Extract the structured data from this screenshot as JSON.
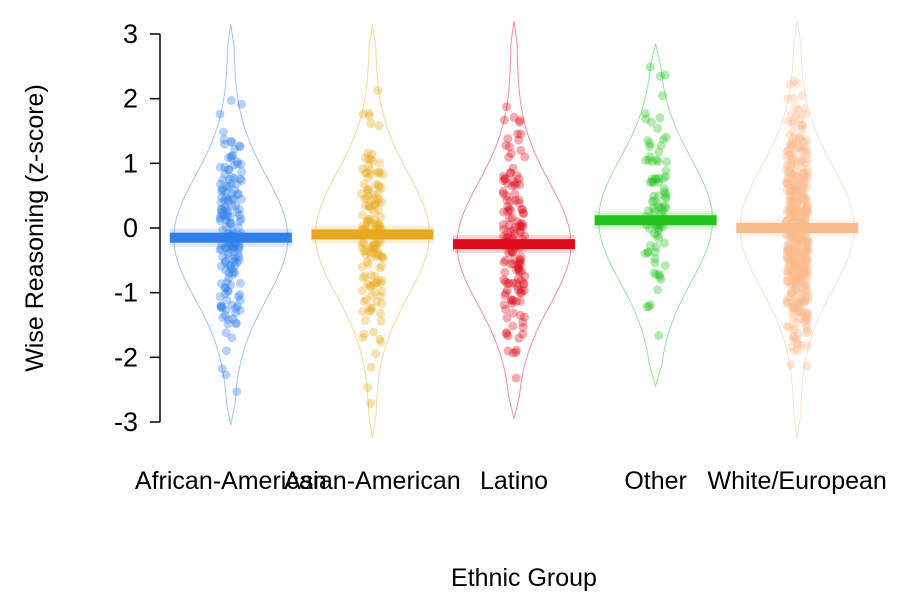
{
  "chart_data": {
    "type": "pirate",
    "title": "",
    "xlabel": "Ethnic Group",
    "ylabel": "Wise Reasoning (z-score)",
    "ylim": [
      -3,
      3
    ],
    "yticks": [
      -3,
      -2,
      -1,
      0,
      1,
      2,
      3
    ],
    "grid": false,
    "legend": "none",
    "groups": [
      {
        "name": "African-American",
        "mean": -0.15,
        "min": -2.7,
        "max": 2.8,
        "color": "#2f7fe8",
        "n_points": 170
      },
      {
        "name": "Asian-American",
        "mean": -0.1,
        "min": -2.9,
        "max": 2.8,
        "color": "#e8a81c",
        "n_points": 150
      },
      {
        "name": "Latino",
        "mean": -0.25,
        "min": -2.6,
        "max": 2.85,
        "color": "#de0c1c",
        "n_points": 150
      },
      {
        "name": "Other",
        "mean": 0.12,
        "min": -2.1,
        "max": 2.5,
        "color": "#22c41e",
        "n_points": 90
      },
      {
        "name": "White/European",
        "mean": 0.0,
        "min": -2.9,
        "max": 2.85,
        "color": "#f8bb8c",
        "n_points": 450
      }
    ]
  }
}
